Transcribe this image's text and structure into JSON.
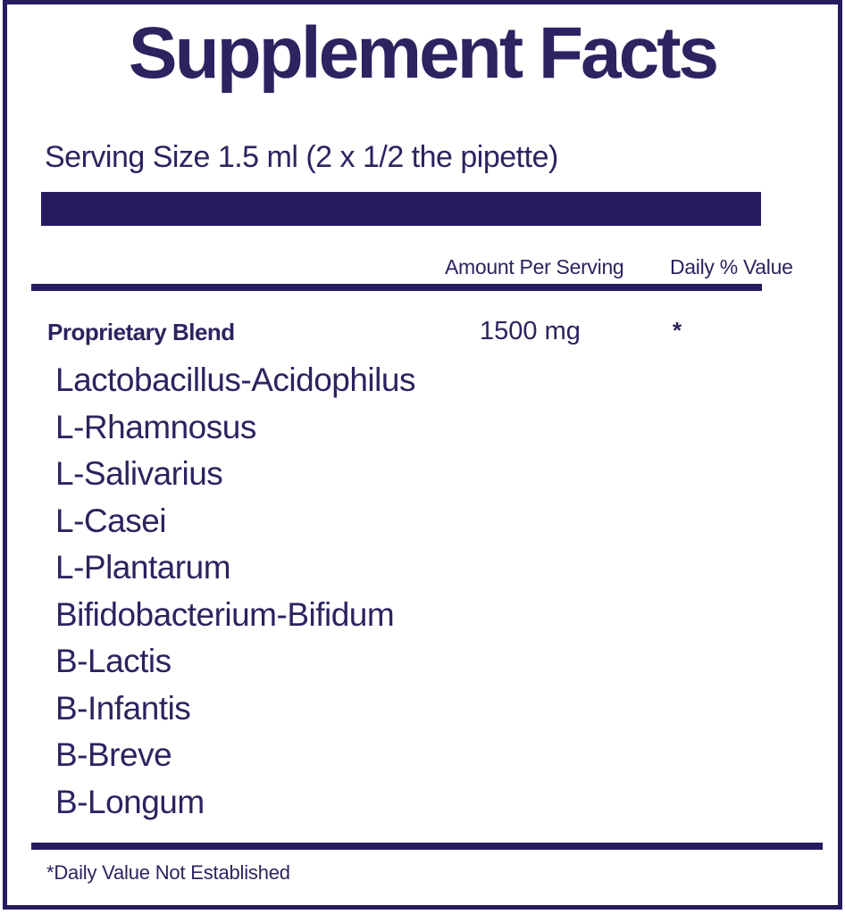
{
  "colors": {
    "navy": "#271b60",
    "ink": "#2c2360",
    "background": "#ffffff"
  },
  "label": {
    "title": "Supplement Facts",
    "serving_size": "Serving Size 1.5 ml (2 x 1/2 the pipette)",
    "columns": {
      "amount": "Amount Per Serving",
      "daily_value": "Daily % Value"
    },
    "blend": {
      "name": "Proprietary Blend",
      "amount": "1500 mg",
      "daily_value": "*"
    },
    "ingredients": [
      "Lactobacillus-Acidophilus",
      "L-Rhamnosus",
      "L-Salivarius",
      "L-Casei",
      "L-Plantarum",
      "Bifidobacterium-Bifidum",
      "B-Lactis",
      "B-Infantis",
      "B-Breve",
      "B-Longum"
    ],
    "footnote": "*Daily Value Not Established"
  }
}
